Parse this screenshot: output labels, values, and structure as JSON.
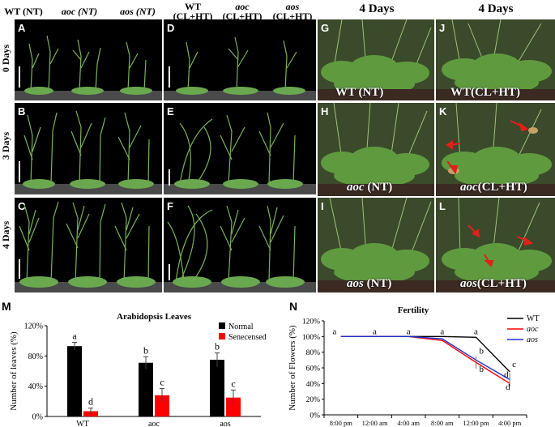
{
  "headers": {
    "wt_nt": "WT (NT)",
    "aoc_nt": "aoc (NT)",
    "aos_nt": "aos (NT)",
    "wt_clht_1": "WT",
    "wt_clht_2": "(CL+HT)",
    "aoc_clht_1": "aoc",
    "aoc_clht_2": "(CL+HT)",
    "aos_clht_1": "aos",
    "aos_clht_2": "(CL+HT)",
    "days4_g": "4 Days",
    "days4_j": "4 Days"
  },
  "row_labels": {
    "r0": "0 Days",
    "r3": "3 Days",
    "r4": "4 Days"
  },
  "panels": {
    "A": "A",
    "B": "B",
    "C": "C",
    "D": "D",
    "E": "E",
    "F": "F",
    "G": "G",
    "H": "H",
    "I": "I",
    "J": "J",
    "K": "K",
    "L": "L"
  },
  "overlays": {
    "G": "WT (NT)",
    "H_it": "aoc",
    "H_rest": " (NT)",
    "I_it": "aos",
    "I_rest": " (NT)",
    "J": "WT(CL+HT)",
    "K_it": "aoc",
    "K_rest": "(CL+HT)",
    "L_it": "aos",
    "L_rest": "(CL+HT)"
  },
  "colors": {
    "green": "#6aa84f",
    "arrow": "#e0201b",
    "black_bar": "#000000",
    "red_bar": "#ff0000",
    "blue_line": "#1f2fd1"
  },
  "chart_data": [
    {
      "panel": "M",
      "type": "bar",
      "title": "Arabidopsis Leaves",
      "ylabel": "Number of leaves (%)",
      "categories": [
        "WT",
        "aoc",
        "aos"
      ],
      "ylim": [
        0,
        120
      ],
      "yticks": [
        "0%",
        "40%",
        "80%",
        "120%"
      ],
      "series": [
        {
          "name": "Normal",
          "color": "#000000",
          "values": [
            93,
            71,
            75
          ],
          "errors": [
            5,
            8,
            9
          ],
          "letters": [
            "a",
            "b",
            "b"
          ]
        },
        {
          "name": "Senecensed",
          "color": "#ff0000",
          "values": [
            7,
            28,
            25
          ],
          "errors": [
            4,
            9,
            10
          ],
          "letters": [
            "d",
            "c",
            "c"
          ]
        }
      ],
      "legend": "top-right"
    },
    {
      "panel": "N",
      "type": "line",
      "title": "Fertility",
      "ylabel": "Number of Flowers (%)",
      "x": [
        "8:00 pm",
        "12:00 am",
        "4:00 am",
        "8:00 am",
        "12:00 pm",
        "4:00 pm"
      ],
      "ylim": [
        0,
        120
      ],
      "yticks": [
        "0%",
        "20%",
        "40%",
        "60%",
        "80%",
        "100%",
        "120%"
      ],
      "series": [
        {
          "name": "WT",
          "color": "#000000",
          "values": [
            100,
            100,
            100,
            100,
            99,
            55
          ]
        },
        {
          "name": "aoc",
          "color": "#ff0000",
          "values": [
            100,
            100,
            100,
            95,
            67,
            40
          ]
        },
        {
          "name": "aos",
          "color": "#1f2fd1",
          "values": [
            100,
            100,
            100,
            97,
            70,
            45
          ]
        }
      ],
      "point_letters": [
        "a",
        "a",
        "a",
        "a",
        "a",
        ""
      ],
      "letters_12pm": [
        "b",
        "b"
      ],
      "letters_4pm": [
        "c",
        "d",
        "d"
      ],
      "legend": "top-right"
    }
  ]
}
